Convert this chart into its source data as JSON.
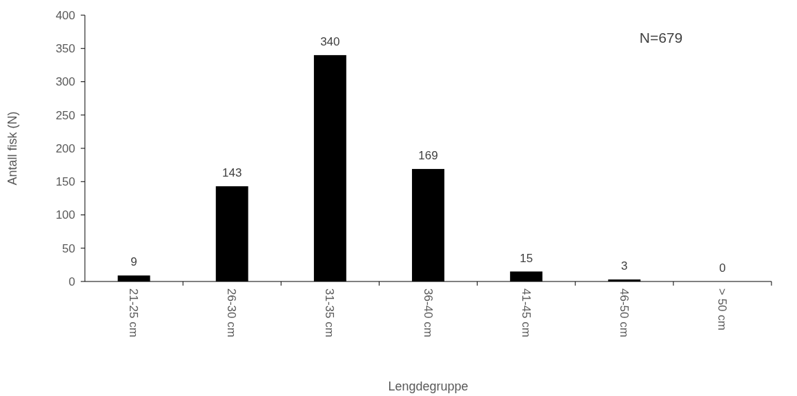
{
  "chart_data": {
    "type": "bar",
    "xlabel": "Lengdegruppe",
    "ylabel": "Antall fisk (N)",
    "categories": [
      "21-25 cm",
      "26-30 cm",
      "31-35 cm",
      "36-40 cm",
      "41-45 cm",
      "46-50 cm",
      "> 50 cm"
    ],
    "values": [
      9,
      143,
      340,
      169,
      15,
      3,
      0
    ],
    "color": "#000000",
    "ylim": [
      0,
      400
    ],
    "yticks": [
      0,
      50,
      100,
      150,
      200,
      250,
      300,
      350,
      400
    ],
    "grid": false,
    "data_labels": true,
    "annotations": [
      "N=679"
    ]
  }
}
